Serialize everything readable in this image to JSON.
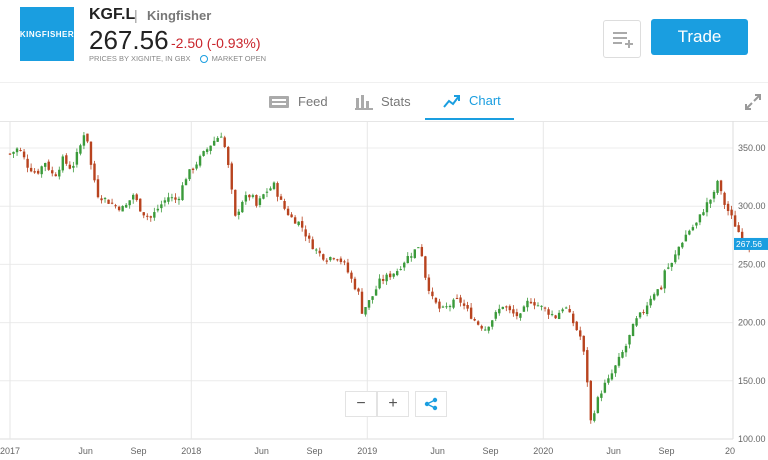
{
  "header": {
    "logo_text": "KINGFISHER",
    "ticker": "KGF.L",
    "separator": "|",
    "company_name": "Kingfisher",
    "price": "267.56",
    "change": "-2.50 (-0.93%)",
    "source": "PRICES BY XIGNITE, IN GBX",
    "market_status": "MARKET OPEN",
    "trade_label": "Trade",
    "brand_color": "#1a9ee0",
    "negative_color": "#c9252c"
  },
  "tabs": [
    {
      "label": "Feed",
      "icon": "feed-icon",
      "active": false
    },
    {
      "label": "Stats",
      "icon": "stats-icon",
      "active": false
    },
    {
      "label": "Chart",
      "icon": "chart-icon",
      "active": true
    }
  ],
  "chart_controls": {
    "zoom_out": "−",
    "zoom_in": "+"
  },
  "chart_data": {
    "type": "candlestick",
    "ylim": [
      100,
      370
    ],
    "y_ticks": [
      "350.00",
      "300.00",
      "250.00",
      "200.00",
      "150.00",
      "100.00"
    ],
    "x_tick_labels": [
      "2017",
      "Jun",
      "Sep",
      "2018",
      "Jun",
      "Sep",
      "2019",
      "Jun",
      "Sep",
      "2020",
      "Jun",
      "Sep",
      "20"
    ],
    "last_price_label": "267.56",
    "grid": true,
    "colors": {
      "up": "#3a9a3a",
      "down": "#b8431f"
    },
    "close_path": [
      [
        0,
        345
      ],
      [
        0.5,
        350
      ],
      [
        1,
        335
      ],
      [
        1.5,
        328
      ],
      [
        2,
        338
      ],
      [
        2.5,
        325
      ],
      [
        3,
        340
      ],
      [
        3.5,
        332
      ],
      [
        4,
        352
      ],
      [
        4.3,
        368
      ],
      [
        4.6,
        335
      ],
      [
        5,
        310
      ],
      [
        5.5,
        305
      ],
      [
        6,
        300
      ],
      [
        6.5,
        298
      ],
      [
        7,
        310
      ],
      [
        7.5,
        295
      ],
      [
        8,
        290
      ],
      [
        8.5,
        300
      ],
      [
        9,
        308
      ],
      [
        9.5,
        305
      ],
      [
        10,
        325
      ],
      [
        10.5,
        335
      ],
      [
        11,
        345
      ],
      [
        11.5,
        355
      ],
      [
        12,
        362
      ],
      [
        12.3,
        345
      ],
      [
        12.8,
        290
      ],
      [
        13.2,
        305
      ],
      [
        13.7,
        310
      ],
      [
        14,
        300
      ],
      [
        14.5,
        312
      ],
      [
        15,
        318
      ],
      [
        15.5,
        300
      ],
      [
        16,
        290
      ],
      [
        16.5,
        285
      ],
      [
        17,
        270
      ],
      [
        17.5,
        260
      ],
      [
        18,
        255
      ],
      [
        18.5,
        258
      ],
      [
        19,
        250
      ],
      [
        19.3,
        240
      ],
      [
        19.8,
        225
      ],
      [
        20,
        210
      ],
      [
        20.5,
        220
      ],
      [
        21,
        235
      ],
      [
        21.5,
        240
      ],
      [
        22,
        245
      ],
      [
        22.5,
        255
      ],
      [
        23,
        262
      ],
      [
        23.3,
        268
      ],
      [
        23.6,
        240
      ],
      [
        24,
        220
      ],
      [
        24.5,
        210
      ],
      [
        25,
        215
      ],
      [
        25.5,
        220
      ],
      [
        26,
        210
      ],
      [
        26.5,
        200
      ],
      [
        27,
        195
      ],
      [
        27.5,
        205
      ],
      [
        28,
        215
      ],
      [
        28.5,
        208
      ],
      [
        29,
        205
      ],
      [
        29.5,
        220
      ],
      [
        30,
        215
      ],
      [
        30.5,
        210
      ],
      [
        31,
        205
      ],
      [
        31.5,
        215
      ],
      [
        32,
        200
      ],
      [
        32.5,
        185
      ],
      [
        32.8,
        150
      ],
      [
        33,
        115
      ],
      [
        33.3,
        130
      ],
      [
        33.7,
        145
      ],
      [
        34,
        150
      ],
      [
        34.5,
        165
      ],
      [
        35,
        180
      ],
      [
        35.5,
        200
      ],
      [
        36,
        210
      ],
      [
        36.5,
        225
      ],
      [
        37,
        230
      ],
      [
        37.2,
        245
      ],
      [
        37.6,
        250
      ],
      [
        38,
        265
      ],
      [
        38.5,
        278
      ],
      [
        39,
        285
      ],
      [
        39.5,
        300
      ],
      [
        40,
        310
      ],
      [
        40.2,
        322
      ],
      [
        40.5,
        305
      ],
      [
        41,
        290
      ],
      [
        41.5,
        275
      ],
      [
        42,
        265
      ],
      [
        42.2,
        267.56
      ]
    ]
  }
}
